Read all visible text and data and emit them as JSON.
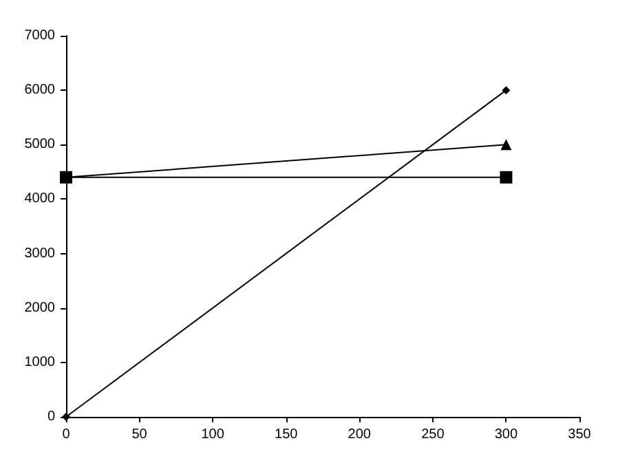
{
  "chart_data": {
    "type": "line",
    "x": [
      0,
      300
    ],
    "series": [
      {
        "color": "#000000",
        "marker": "diamond",
        "values": [
          0,
          6000
        ]
      },
      {
        "color": "#000000",
        "marker": "square",
        "values": [
          4400,
          4400
        ]
      },
      {
        "color": "#000000",
        "marker": "triangle",
        "values": [
          4400,
          5000
        ]
      }
    ],
    "xlim": [
      0,
      350
    ],
    "xticks": [
      0,
      50,
      100,
      150,
      200,
      250,
      300,
      350
    ],
    "ylim": [
      0,
      7000
    ],
    "yticks": [
      0,
      1000,
      2000,
      3000,
      4000,
      5000,
      6000,
      7000
    ],
    "grid": false,
    "line_style": "solid"
  }
}
